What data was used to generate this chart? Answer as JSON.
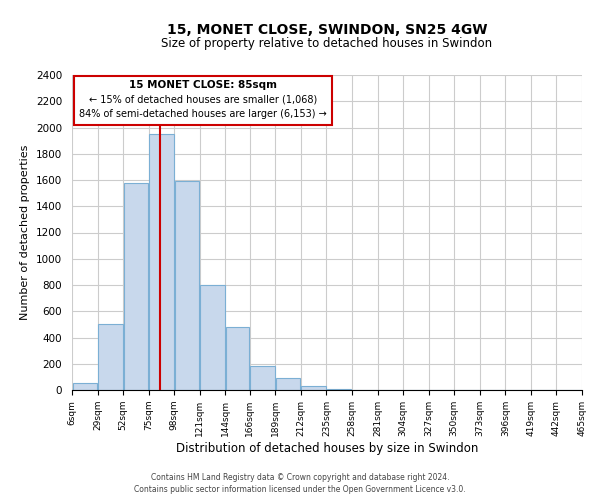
{
  "title": "15, MONET CLOSE, SWINDON, SN25 4GW",
  "subtitle": "Size of property relative to detached houses in Swindon",
  "xlabel": "Distribution of detached houses by size in Swindon",
  "ylabel": "Number of detached properties",
  "bar_color": "#c8d8ec",
  "bar_edgecolor": "#7bafd4",
  "vline_x": 85,
  "vline_color": "#cc0000",
  "annotation_title": "15 MONET CLOSE: 85sqm",
  "annotation_line1": "← 15% of detached houses are smaller (1,068)",
  "annotation_line2": "84% of semi-detached houses are larger (6,153) →",
  "annotation_box_edgecolor": "#cc0000",
  "bins": [
    6,
    29,
    52,
    75,
    98,
    121,
    144,
    166,
    189,
    212,
    235,
    258,
    281,
    304,
    327,
    350,
    373,
    396,
    419,
    442,
    465
  ],
  "bar_heights": [
    55,
    500,
    1580,
    1950,
    1590,
    800,
    480,
    185,
    90,
    30,
    5,
    2,
    0,
    0,
    0,
    0,
    0,
    0,
    0,
    0
  ],
  "xlim": [
    6,
    465
  ],
  "ylim": [
    0,
    2400
  ],
  "yticks": [
    0,
    200,
    400,
    600,
    800,
    1000,
    1200,
    1400,
    1600,
    1800,
    2000,
    2200,
    2400
  ],
  "xtick_labels": [
    "6sqm",
    "29sqm",
    "52sqm",
    "75sqm",
    "98sqm",
    "121sqm",
    "144sqm",
    "166sqm",
    "189sqm",
    "212sqm",
    "235sqm",
    "258sqm",
    "281sqm",
    "304sqm",
    "327sqm",
    "350sqm",
    "373sqm",
    "396sqm",
    "419sqm",
    "442sqm",
    "465sqm"
  ],
  "footnote1": "Contains HM Land Registry data © Crown copyright and database right 2024.",
  "footnote2": "Contains public sector information licensed under the Open Government Licence v3.0.",
  "background_color": "#ffffff",
  "grid_color": "#cccccc"
}
